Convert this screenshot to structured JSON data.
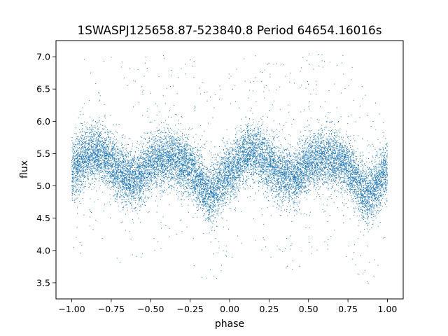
{
  "chart_data": {
    "type": "scatter",
    "title": "1SWASPJ125658.87-523840.8 Period 64654.16016s",
    "xlabel": "phase",
    "ylabel": "flux",
    "xlim": [
      -1.1,
      1.1
    ],
    "ylim": [
      3.25,
      7.25
    ],
    "xticks": [
      -1.0,
      -0.75,
      -0.5,
      -0.25,
      0.0,
      0.25,
      0.5,
      0.75,
      1.0
    ],
    "xtick_labels": [
      "−1.00",
      "−0.75",
      "−0.50",
      "−0.25",
      "0.00",
      "0.25",
      "0.50",
      "0.75",
      "1.00"
    ],
    "yticks": [
      3.5,
      4.0,
      4.5,
      5.0,
      5.5,
      6.0,
      6.5,
      7.0
    ],
    "ytick_labels": [
      "3.5",
      "4.0",
      "4.5",
      "5.0",
      "5.5",
      "6.0",
      "6.5",
      "7.0"
    ],
    "grid": false,
    "point_color": "#1f77b4",
    "series": [
      {
        "phase_range": [
          -1.0,
          1.0
        ],
        "profile_phase": [
          0.0,
          0.08,
          0.17,
          0.25,
          0.33,
          0.42,
          0.5,
          0.58,
          0.66,
          0.75,
          0.8,
          0.87,
          0.93,
          1.0
        ],
        "profile_flux": [
          5.2,
          5.45,
          5.52,
          5.35,
          5.15,
          5.12,
          5.35,
          5.42,
          5.42,
          5.3,
          5.1,
          4.85,
          5.0,
          5.3
        ],
        "scatter_sigma": 0.22,
        "flux_min": 3.45,
        "flux_max": 7.05
      }
    ]
  }
}
